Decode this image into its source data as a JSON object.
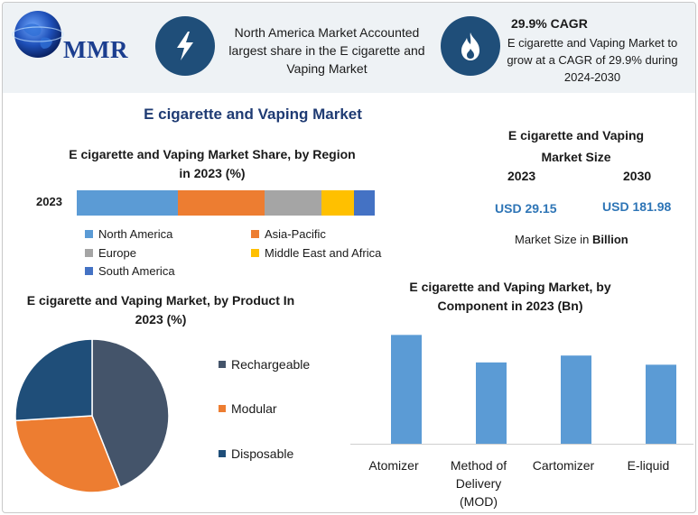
{
  "colors": {
    "icon_bg": "#1f4e79",
    "title_blue": "#1f3b73",
    "value_blue": "#2e75b6",
    "north_america": "#5b9bd5",
    "asia_pacific": "#ed7d31",
    "europe": "#a5a5a5",
    "mea": "#ffc000",
    "south_america": "#4472c4",
    "rechargeable": "#44546a",
    "modular": "#ed7d31",
    "disposable": "#1f4e79",
    "component_bar": "#5b9bd5"
  },
  "header": {
    "logo_text": "MMR",
    "logo_icon": "globe-icon",
    "highlight_1_icon": "lightning-icon",
    "highlight_1_text": "North America Market Accounted largest share in the E cigarette and Vaping Market",
    "highlight_2_icon": "flame-icon",
    "highlight_2_title": "29.9% CAGR",
    "highlight_2_text": "E cigarette and Vaping Market to grow at a CAGR of 29.9% during 2024-2030"
  },
  "main_title": "E cigarette and Vaping Market",
  "market_size": {
    "title": "E cigarette and Vaping Market Size",
    "year_1": "2023",
    "year_2": "2030",
    "value_1": "USD 29.15",
    "value_2": "USD 181.98",
    "unit_prefix": "Market Size in",
    "unit": "Billion"
  },
  "chart_data": [
    {
      "type": "bar",
      "stacked": true,
      "orientation": "horizontal",
      "title": "E cigarette and Vaping Market Share, by Region in 2023 (%)",
      "categories": [
        "2023"
      ],
      "series": [
        {
          "name": "North America",
          "values": [
            34
          ]
        },
        {
          "name": "Asia-Pacific",
          "values": [
            29
          ]
        },
        {
          "name": "Europe",
          "values": [
            19
          ]
        },
        {
          "name": "Middle East and Africa",
          "values": [
            11
          ]
        },
        {
          "name": "South America",
          "values": [
            7
          ]
        }
      ],
      "legend": "bottom"
    },
    {
      "type": "pie",
      "title": "E cigarette and Vaping Market, by Product In 2023 (%)",
      "labels": [
        "Rechargeable",
        "Modular",
        "Disposable"
      ],
      "values": [
        44,
        30,
        26
      ],
      "legend": "right"
    },
    {
      "type": "bar",
      "title": "E cigarette and Vaping Market, by Component in 2023 (Bn)",
      "categories": [
        "Atomizer",
        "Method of Delivery (MOD)",
        "Cartomizer",
        "E-liquid"
      ],
      "values": [
        9.5,
        7.1,
        7.7,
        6.9
      ],
      "ylim": [
        0,
        10
      ]
    }
  ]
}
